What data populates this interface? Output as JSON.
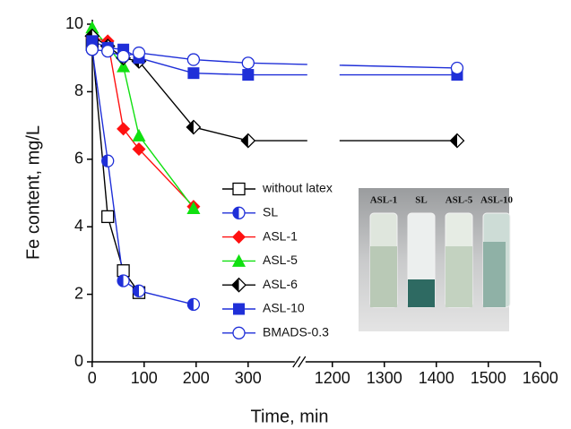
{
  "chart_data": {
    "type": "line",
    "xlabel": "Time, min",
    "ylabel": "Fe content, mg/L",
    "xlim": [
      -10,
      1600
    ],
    "x_break": [
      400,
      1138
    ],
    "ylim": [
      0,
      10
    ],
    "xticks": [
      0,
      100,
      200,
      300,
      1200,
      1300,
      1400,
      1500,
      1600
    ],
    "yticks": [
      0,
      2,
      4,
      6,
      8,
      10
    ],
    "series": [
      {
        "name": "without latex",
        "color": "#000000",
        "marker": "square-open",
        "x": [
          0,
          30,
          60,
          90
        ],
        "values": [
          9.4,
          4.3,
          2.7,
          2.05
        ]
      },
      {
        "name": "SL",
        "color": "#1f2fd8",
        "marker": "circle-half",
        "x": [
          0,
          30,
          60,
          90,
          195
        ],
        "values": [
          9.25,
          5.95,
          2.4,
          2.1,
          1.7
        ]
      },
      {
        "name": "ASL-1",
        "color": "#ff1010",
        "marker": "diamond",
        "x": [
          0,
          30,
          60,
          90,
          195
        ],
        "values": [
          9.6,
          9.5,
          6.9,
          6.3,
          4.6
        ]
      },
      {
        "name": "ASL-5",
        "color": "#10e010",
        "marker": "triangle",
        "x": [
          0,
          30,
          60,
          90,
          195
        ],
        "values": [
          9.9,
          9.35,
          8.75,
          6.7,
          4.55
        ]
      },
      {
        "name": "ASL-6",
        "color": "#000000",
        "marker": "diamond-half",
        "x": [
          0,
          30,
          60,
          90,
          195,
          300,
          1440
        ],
        "values": [
          9.65,
          9.35,
          9.0,
          8.9,
          6.95,
          6.55,
          6.55
        ]
      },
      {
        "name": "ASL-10",
        "color": "#1f2fd8",
        "marker": "square",
        "x": [
          0,
          30,
          60,
          90,
          195,
          300,
          1440
        ],
        "values": [
          9.5,
          9.3,
          9.25,
          9.0,
          8.55,
          8.5,
          8.5
        ]
      },
      {
        "name": "BMADS-0.3",
        "color": "#1f2fd8",
        "marker": "circle-open",
        "x": [
          0,
          30,
          60,
          90,
          195,
          300,
          1440
        ],
        "values": [
          9.25,
          9.2,
          9.05,
          9.15,
          8.95,
          8.85,
          8.7
        ]
      }
    ],
    "inset_labels": [
      "ASL-1",
      "SL",
      "ASL-5",
      "ASL-10"
    ]
  }
}
